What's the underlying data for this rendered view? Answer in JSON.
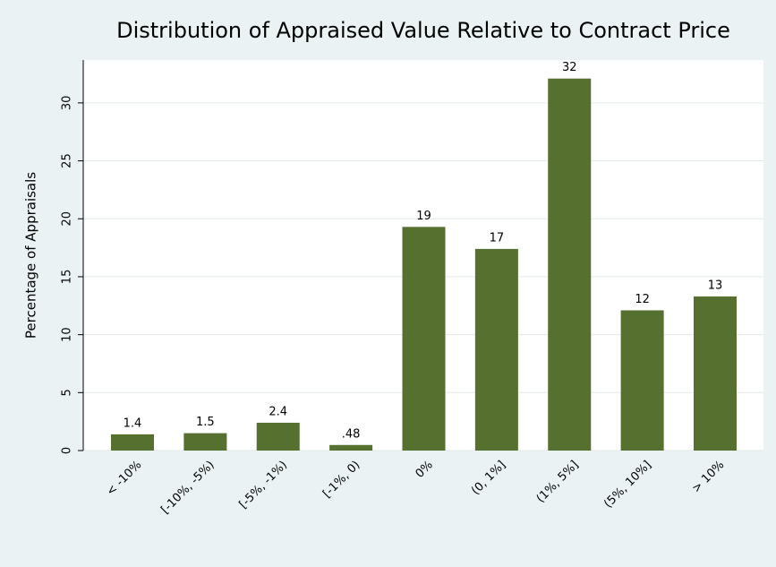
{
  "chart_data": {
    "type": "bar",
    "title": "Distribution of Appraised Value Relative to Contract Price",
    "y_label": "Percentage of Appraisals",
    "categories": [
      "< -10%",
      "[-10%, -5%)",
      "[-5%, -1%)",
      "[-1%, 0)",
      "0%",
      "(0, 1%]",
      "(1%, 5%]",
      "(5%, 10%]",
      "> 10%"
    ],
    "values": [
      1.4,
      1.5,
      2.4,
      0.48,
      19.3,
      17.4,
      32.1,
      12.1,
      13.3
    ],
    "value_labels": [
      "1.4",
      "1.5",
      "2.4",
      ".48",
      "19",
      "17",
      "32",
      "12",
      "13"
    ],
    "color": "#55702f",
    "ylim": [
      0,
      33.7
    ],
    "yticks": [
      0,
      5,
      10,
      15,
      20,
      25,
      30
    ],
    "grid": true
  }
}
